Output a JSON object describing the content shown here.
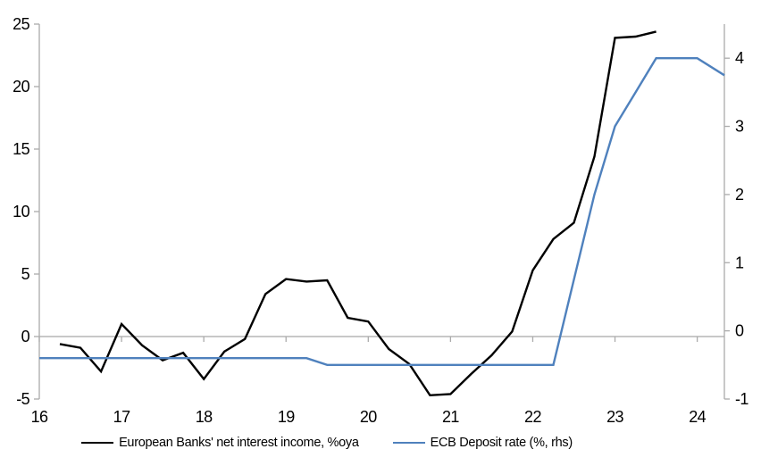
{
  "chart_data": {
    "type": "line",
    "title": "",
    "grid": "zero-line-only",
    "legend_position": "bottom",
    "x_axis": {
      "min": 16,
      "max": 24.33,
      "ticks": [
        16,
        17,
        18,
        19,
        20,
        21,
        22,
        23,
        24
      ],
      "labels": [
        "16",
        "17",
        "18",
        "19",
        "20",
        "21",
        "22",
        "23",
        "24"
      ]
    },
    "left_axis": {
      "min": -5,
      "max": 25,
      "ticks": [
        25,
        20,
        15,
        10,
        5,
        0,
        -5
      ]
    },
    "right_axis": {
      "min": -1,
      "max": 4.5,
      "ticks": [
        4,
        3,
        2,
        1,
        0,
        -1
      ]
    },
    "series": [
      {
        "label": "European Banks' net interest income, %oya",
        "axis": "left",
        "color": "#000000",
        "x": [
          16.25,
          16.5,
          16.75,
          17.0,
          17.25,
          17.5,
          17.75,
          18.0,
          18.25,
          18.5,
          18.75,
          19.0,
          19.25,
          19.5,
          19.75,
          20.0,
          20.25,
          20.5,
          20.75,
          21.0,
          21.25,
          21.5,
          21.75,
          22.0,
          22.25,
          22.5,
          22.75,
          23.0,
          23.25,
          23.5
        ],
        "values": [
          -0.6,
          -0.9,
          -2.8,
          1.0,
          -0.7,
          -1.9,
          -1.3,
          -3.4,
          -1.2,
          -0.2,
          3.4,
          4.6,
          4.4,
          4.5,
          1.5,
          1.2,
          -1.0,
          -2.2,
          -4.7,
          -4.6,
          -3.0,
          -1.5,
          0.4,
          5.3,
          7.8,
          9.1,
          14.4,
          23.9,
          24.0,
          24.4
        ]
      },
      {
        "label": "ECB Deposit rate (%, rhs)",
        "axis": "right",
        "color": "#4f81bd",
        "x": [
          16.0,
          16.25,
          16.5,
          16.75,
          17.0,
          17.25,
          17.5,
          17.75,
          18.0,
          18.25,
          18.5,
          18.75,
          19.0,
          19.25,
          19.5,
          19.75,
          20.0,
          20.25,
          20.5,
          20.75,
          21.0,
          21.25,
          21.5,
          21.75,
          22.0,
          22.25,
          22.5,
          22.75,
          23.0,
          23.25,
          23.5,
          23.75,
          24.0,
          24.33
        ],
        "values": [
          -0.4,
          -0.4,
          -0.4,
          -0.4,
          -0.4,
          -0.4,
          -0.4,
          -0.4,
          -0.4,
          -0.4,
          -0.4,
          -0.4,
          -0.4,
          -0.4,
          -0.5,
          -0.5,
          -0.5,
          -0.5,
          -0.5,
          -0.5,
          -0.5,
          -0.5,
          -0.5,
          -0.5,
          -0.5,
          -0.5,
          0.75,
          2.0,
          3.0,
          3.5,
          4.0,
          4.0,
          4.0,
          3.75
        ]
      }
    ]
  },
  "colors": {
    "background": "#ffffff",
    "axis_line": "#ababab",
    "zero_line": "#a6a6a6",
    "text": "#000000",
    "series_black": "#000000",
    "series_blue": "#4f81bd"
  }
}
